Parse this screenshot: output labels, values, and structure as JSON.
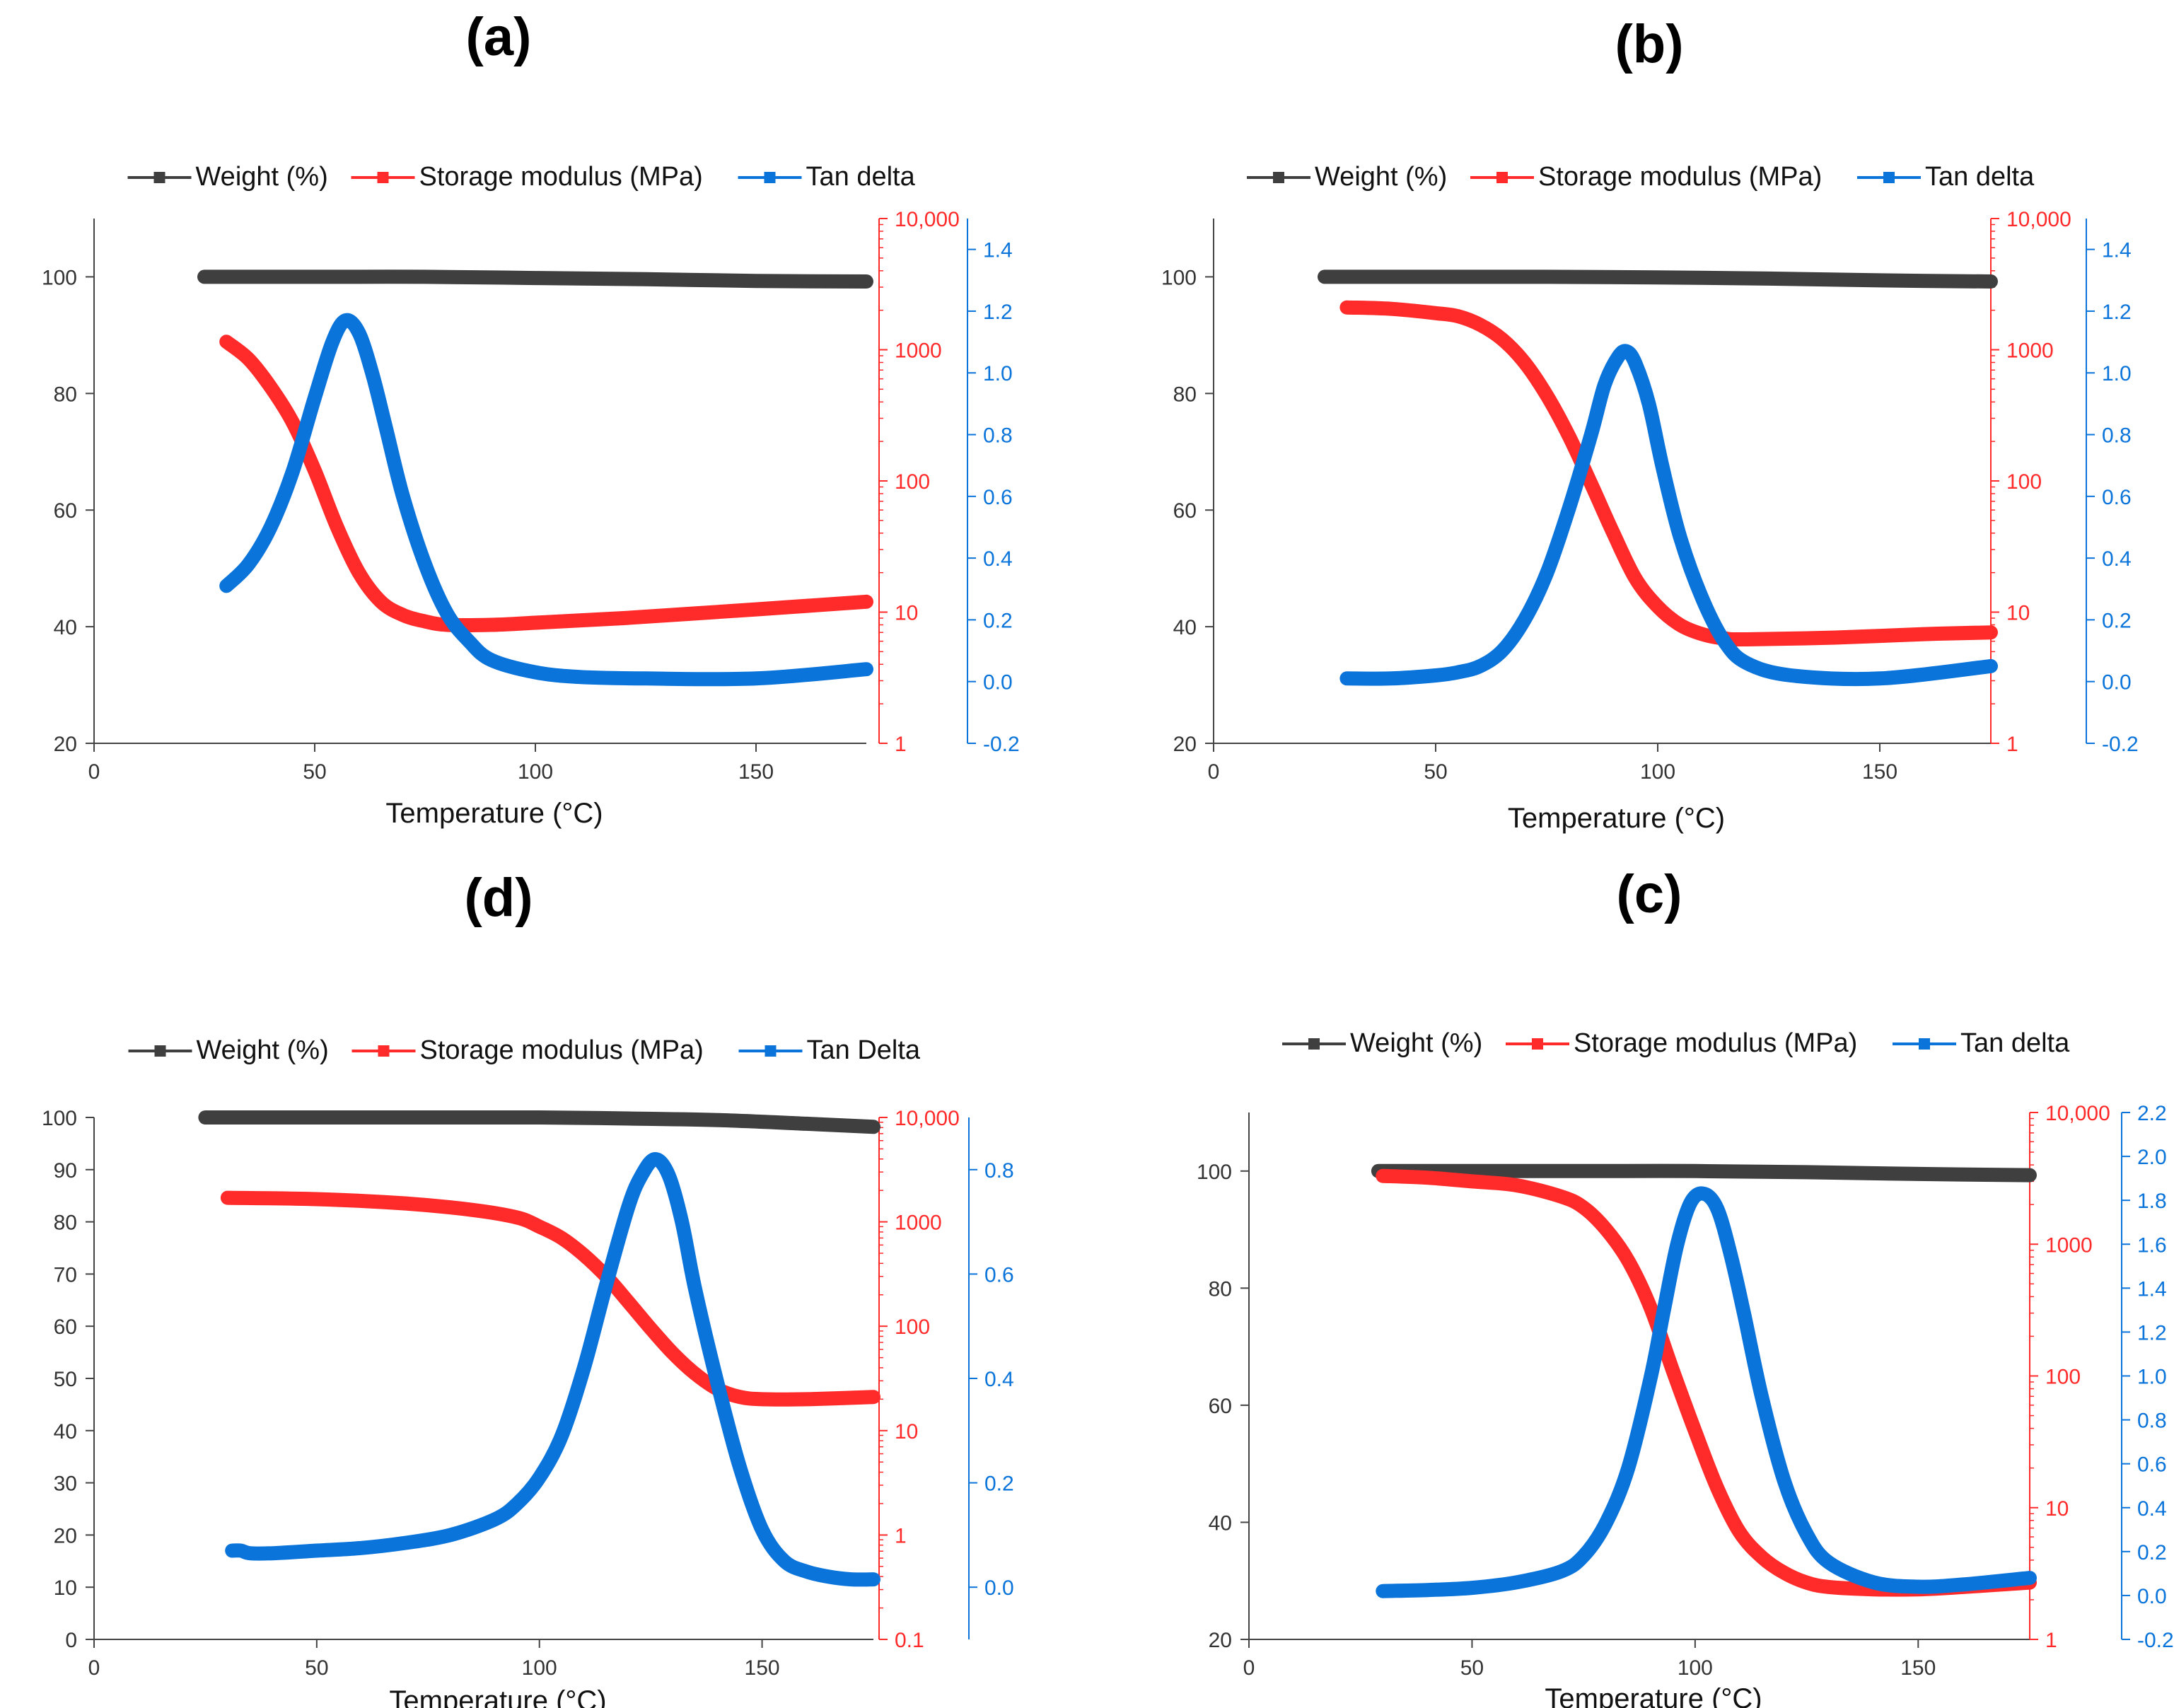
{
  "figure": {
    "panel_order": [
      "a",
      "b",
      "d",
      "c"
    ]
  },
  "chart_data": [
    {
      "id": "a",
      "panel_label": "(a)",
      "type": "line",
      "xlabel": "Temperature (°C)",
      "xlim": [
        0,
        175
      ],
      "xticks": [
        0,
        50,
        100,
        150
      ],
      "legend": {
        "placement": "top",
        "entries": [
          "Weight (%)",
          "Storage modulus (MPa)",
          "Tan delta"
        ]
      },
      "colors": {
        "weight": "#3f3f3f",
        "modulus": "#ff2b2b",
        "tan": "#0a74da"
      },
      "axes": {
        "weight": {
          "label": "Weight (%)",
          "scale": "linear",
          "lim": [
            20,
            110
          ],
          "ticks": [
            20,
            40,
            60,
            80,
            100
          ],
          "tick_labels": [
            "20",
            "40",
            "60",
            "80",
            "100"
          ]
        },
        "modulus": {
          "label": "Storage modulus (MPa)",
          "scale": "log",
          "lim": [
            1,
            10000
          ],
          "ticks": [
            1,
            10,
            100,
            1000,
            10000
          ],
          "tick_labels": [
            "1",
            "10",
            "100",
            "1000",
            "10,000"
          ]
        },
        "tan": {
          "label": "Tan delta",
          "scale": "linear",
          "lim": [
            -0.2,
            1.5
          ],
          "ticks": [
            -0.2,
            0.0,
            0.2,
            0.4,
            0.6,
            0.8,
            1.0,
            1.2,
            1.4
          ],
          "tick_labels": [
            "-0.2",
            "0.0",
            "0.2",
            "0.4",
            "0.6",
            "0.8",
            "1.0",
            "1.2",
            "1.4"
          ]
        }
      },
      "series": [
        {
          "name": "Weight (%)",
          "axis": "weight",
          "x": [
            25,
            50,
            75,
            100,
            125,
            150,
            175
          ],
          "y": [
            100,
            100,
            100,
            99.8,
            99.6,
            99.3,
            99.2
          ]
        },
        {
          "name": "Storage modulus (MPa)",
          "axis": "modulus",
          "x": [
            30,
            35,
            40,
            45,
            50,
            55,
            60,
            65,
            70,
            75,
            80,
            90,
            100,
            120,
            150,
            175
          ],
          "y": [
            1150,
            850,
            520,
            280,
            120,
            45,
            20,
            12,
            9.5,
            8.5,
            8,
            8,
            8.3,
            9,
            10.5,
            12
          ]
        },
        {
          "name": "Tan delta",
          "axis": "tan",
          "x": [
            30,
            35,
            40,
            45,
            50,
            54,
            57,
            60,
            63,
            66,
            70,
            75,
            80,
            85,
            90,
            100,
            110,
            125,
            150,
            175
          ],
          "y": [
            0.31,
            0.38,
            0.5,
            0.68,
            0.92,
            1.1,
            1.17,
            1.13,
            1.0,
            0.83,
            0.6,
            0.38,
            0.22,
            0.13,
            0.07,
            0.03,
            0.015,
            0.01,
            0.01,
            0.04
          ]
        }
      ]
    },
    {
      "id": "b",
      "panel_label": "(b)",
      "type": "line",
      "xlabel": "Temperature (°C)",
      "xlim": [
        0,
        175
      ],
      "xticks": [
        0,
        50,
        100,
        150
      ],
      "legend": {
        "placement": "top",
        "entries": [
          "Weight (%)",
          "Storage modulus (MPa)",
          "Tan delta"
        ]
      },
      "colors": {
        "weight": "#3f3f3f",
        "modulus": "#ff2b2b",
        "tan": "#0a74da"
      },
      "axes": {
        "weight": {
          "label": "Weight (%)",
          "scale": "linear",
          "lim": [
            20,
            110
          ],
          "ticks": [
            20,
            40,
            60,
            80,
            100
          ],
          "tick_labels": [
            "20",
            "40",
            "60",
            "80",
            "100"
          ]
        },
        "modulus": {
          "label": "Storage modulus (MPa)",
          "scale": "log",
          "lim": [
            1,
            10000
          ],
          "ticks": [
            1,
            10,
            100,
            1000,
            10000
          ],
          "tick_labels": [
            "1",
            "10",
            "100",
            "1000",
            "10,000"
          ]
        },
        "tan": {
          "label": "Tan delta",
          "scale": "linear",
          "lim": [
            -0.2,
            1.5
          ],
          "ticks": [
            -0.2,
            0.0,
            0.2,
            0.4,
            0.6,
            0.8,
            1.0,
            1.2,
            1.4
          ],
          "tick_labels": [
            "-0.2",
            "0.0",
            "0.2",
            "0.4",
            "0.6",
            "0.8",
            "1.0",
            "1.2",
            "1.4"
          ]
        }
      },
      "series": [
        {
          "name": "Weight (%)",
          "axis": "weight",
          "x": [
            25,
            50,
            75,
            100,
            125,
            150,
            175
          ],
          "y": [
            100,
            100,
            100,
            99.9,
            99.7,
            99.4,
            99.2
          ]
        },
        {
          "name": "Storage modulus (MPa)",
          "axis": "modulus",
          "x": [
            30,
            40,
            50,
            55,
            60,
            65,
            70,
            75,
            80,
            85,
            90,
            95,
            100,
            105,
            110,
            115,
            120,
            140,
            160,
            175
          ],
          "y": [
            2100,
            2050,
            1900,
            1800,
            1550,
            1200,
            800,
            450,
            220,
            95,
            40,
            18,
            11,
            8,
            6.8,
            6.3,
            6.2,
            6.4,
            6.8,
            7
          ]
        },
        {
          "name": "Tan delta",
          "axis": "tan",
          "x": [
            30,
            40,
            50,
            55,
            60,
            65,
            70,
            75,
            80,
            85,
            88,
            91,
            93,
            95,
            98,
            101,
            105,
            110,
            115,
            120,
            130,
            150,
            175
          ],
          "y": [
            0.01,
            0.01,
            0.02,
            0.03,
            0.05,
            0.1,
            0.2,
            0.35,
            0.56,
            0.8,
            0.96,
            1.05,
            1.07,
            1.03,
            0.9,
            0.7,
            0.47,
            0.27,
            0.13,
            0.06,
            0.02,
            0.01,
            0.05
          ]
        }
      ]
    },
    {
      "id": "d",
      "panel_label": "(d)",
      "type": "line",
      "xlabel": "Temperature (°C)",
      "xlim": [
        0,
        175
      ],
      "xticks": [
        0,
        50,
        100,
        150
      ],
      "legend": {
        "placement": "top",
        "entries": [
          "Weight (%)",
          "Storage modulus (MPa)",
          "Tan Delta"
        ]
      },
      "colors": {
        "weight": "#3f3f3f",
        "modulus": "#ff2b2b",
        "tan": "#0a74da"
      },
      "axes": {
        "weight": {
          "label": "Weight (%)",
          "scale": "linear",
          "lim": [
            0,
            100
          ],
          "ticks": [
            0,
            10,
            20,
            30,
            40,
            50,
            60,
            70,
            80,
            90,
            100
          ],
          "tick_labels": [
            "0",
            "10",
            "20",
            "30",
            "40",
            "50",
            "60",
            "70",
            "80",
            "90",
            "100"
          ]
        },
        "modulus": {
          "label": "Storage modulus (MPa)",
          "scale": "log",
          "lim": [
            0.1,
            10000
          ],
          "ticks": [
            0.1,
            1,
            10,
            100,
            1000,
            10000
          ],
          "tick_labels": [
            "0.1",
            "1",
            "10",
            "100",
            "1000",
            "10,000"
          ]
        },
        "tan": {
          "label": "Tan Delta",
          "scale": "linear",
          "lim": [
            -0.1,
            0.9
          ],
          "ticks": [
            0.0,
            0.2,
            0.4,
            0.6,
            0.8
          ],
          "tick_labels": [
            "0.0",
            "0.2",
            "0.4",
            "0.6",
            "0.8"
          ]
        }
      },
      "series": [
        {
          "name": "Weight (%)",
          "axis": "weight",
          "x": [
            25,
            50,
            75,
            100,
            120,
            140,
            160,
            175
          ],
          "y": [
            100,
            100,
            100,
            100,
            99.8,
            99.5,
            98.8,
            98.2
          ]
        },
        {
          "name": "Storage modulus (MPa)",
          "axis": "modulus",
          "x": [
            30,
            50,
            70,
            85,
            95,
            100,
            105,
            110,
            115,
            120,
            125,
            130,
            135,
            140,
            145,
            150,
            160,
            175
          ],
          "y": [
            1700,
            1650,
            1500,
            1300,
            1100,
            900,
            700,
            480,
            300,
            170,
            95,
            55,
            35,
            25,
            21,
            20,
            20,
            21
          ]
        },
        {
          "name": "Tan delta",
          "axis": "tan",
          "x": [
            31,
            33,
            35,
            40,
            50,
            60,
            70,
            80,
            90,
            95,
            100,
            105,
            110,
            115,
            120,
            123,
            126,
            129,
            132,
            135,
            140,
            145,
            150,
            155,
            160,
            165,
            170,
            175
          ],
          "y": [
            0.07,
            0.07,
            0.065,
            0.065,
            0.07,
            0.075,
            0.085,
            0.1,
            0.13,
            0.16,
            0.21,
            0.29,
            0.42,
            0.58,
            0.73,
            0.79,
            0.82,
            0.79,
            0.7,
            0.57,
            0.39,
            0.23,
            0.11,
            0.05,
            0.03,
            0.02,
            0.015,
            0.015
          ]
        }
      ]
    },
    {
      "id": "c",
      "panel_label": "(c)",
      "type": "line",
      "xlabel": "Temperature (°C)",
      "xlim": [
        0,
        175
      ],
      "xticks": [
        0,
        50,
        100,
        150
      ],
      "legend": {
        "placement": "top",
        "entries": [
          "Weight (%)",
          "Storage modulus (MPa)",
          "Tan delta"
        ]
      },
      "colors": {
        "weight": "#3f3f3f",
        "modulus": "#ff2b2b",
        "tan": "#0a74da"
      },
      "axes": {
        "weight": {
          "label": "Weight (%)",
          "scale": "linear",
          "lim": [
            20,
            110
          ],
          "ticks": [
            20,
            40,
            60,
            80,
            100
          ],
          "tick_labels": [
            "20",
            "40",
            "60",
            "80",
            "100"
          ]
        },
        "modulus": {
          "label": "Storage modulus (MPa)",
          "scale": "log",
          "lim": [
            1,
            10000
          ],
          "ticks": [
            1,
            10,
            100,
            1000,
            10000
          ],
          "tick_labels": [
            "1",
            "10",
            "100",
            "1000",
            "10,000"
          ]
        },
        "tan": {
          "label": "Tan delta",
          "scale": "linear",
          "lim": [
            -0.2,
            2.2
          ],
          "ticks": [
            -0.2,
            0.0,
            0.2,
            0.4,
            0.6,
            0.8,
            1.0,
            1.2,
            1.4,
            1.6,
            1.8,
            2.0,
            2.2
          ],
          "tick_labels": [
            "-0.2",
            "0.0",
            "0.2",
            "0.4",
            "0.6",
            "0.8",
            "1.0",
            "1.2",
            "1.4",
            "1.6",
            "1.8",
            "2.0",
            "2.2"
          ]
        }
      },
      "series": [
        {
          "name": "Weight (%)",
          "axis": "weight",
          "x": [
            29,
            50,
            75,
            100,
            125,
            150,
            175
          ],
          "y": [
            100,
            100,
            100,
            100,
            99.8,
            99.5,
            99.3
          ]
        },
        {
          "name": "Storage modulus (MPa)",
          "axis": "modulus",
          "x": [
            30,
            40,
            50,
            60,
            70,
            75,
            80,
            85,
            90,
            95,
            100,
            105,
            110,
            115,
            120,
            125,
            130,
            140,
            150,
            160,
            175
          ],
          "y": [
            3300,
            3200,
            3000,
            2800,
            2300,
            1900,
            1300,
            750,
            330,
            110,
            38,
            14,
            6.5,
            4.2,
            3.2,
            2.7,
            2.5,
            2.4,
            2.4,
            2.5,
            2.7
          ]
        },
        {
          "name": "Tan delta",
          "axis": "tan",
          "x": [
            30,
            40,
            50,
            60,
            70,
            75,
            80,
            85,
            90,
            93,
            96,
            99,
            102,
            105,
            108,
            111,
            115,
            120,
            125,
            130,
            140,
            150,
            160,
            175
          ],
          "y": [
            0.02,
            0.025,
            0.035,
            0.06,
            0.11,
            0.18,
            0.33,
            0.58,
            0.99,
            1.3,
            1.6,
            1.79,
            1.83,
            1.76,
            1.55,
            1.28,
            0.9,
            0.52,
            0.28,
            0.15,
            0.06,
            0.04,
            0.05,
            0.08
          ]
        }
      ]
    }
  ]
}
